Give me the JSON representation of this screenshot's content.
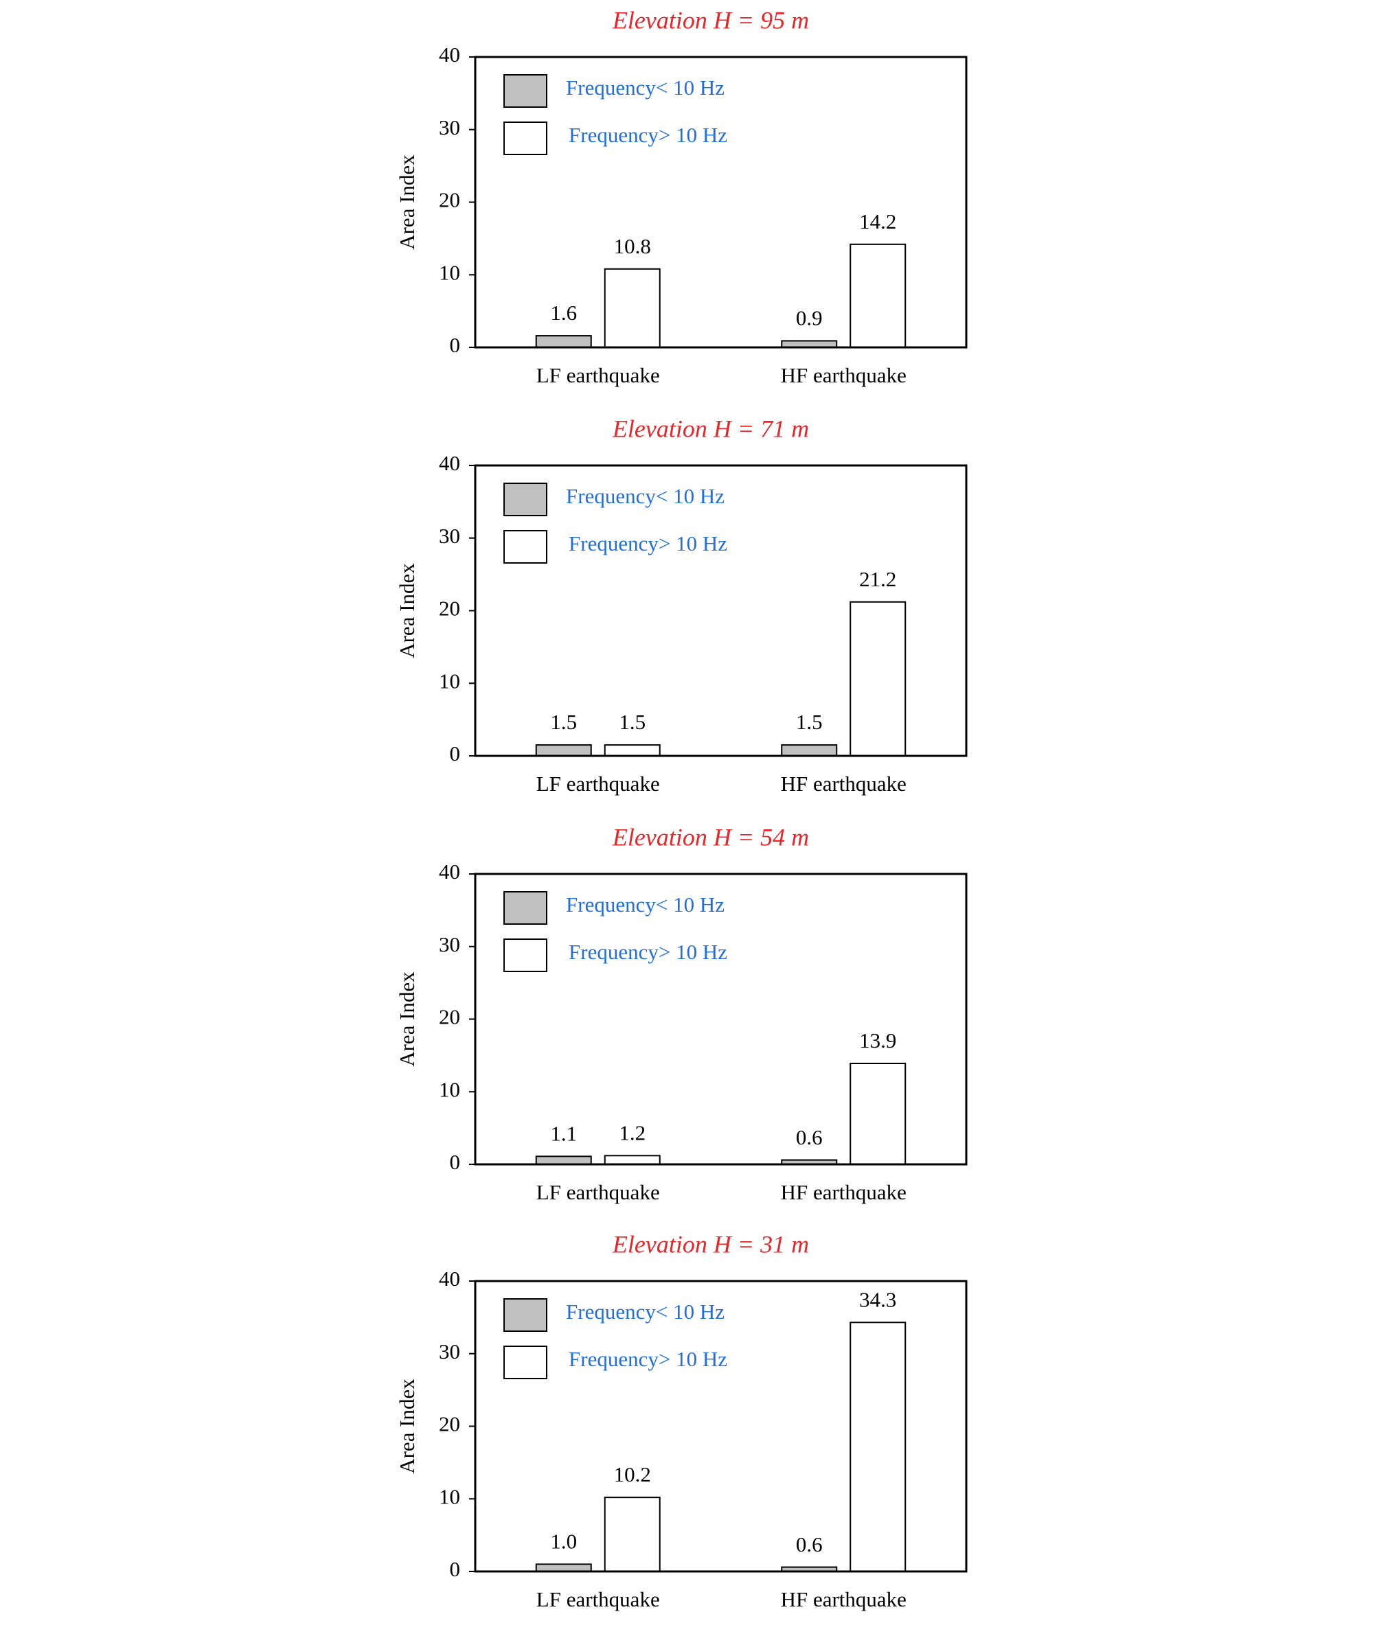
{
  "chart_data": [
    {
      "type": "bar",
      "title": "Elevation H = 95 m",
      "ylabel": "Area Index",
      "categories": [
        "LF earthquake",
        "HF earthquake"
      ],
      "series": [
        {
          "name": "Frequency< 10 Hz",
          "color": "#c0c0c0",
          "values": [
            1.6,
            0.9
          ]
        },
        {
          "name": "Frequency> 10 Hz",
          "color": "#ffffff",
          "values": [
            10.8,
            14.2
          ]
        }
      ],
      "ylim": [
        0,
        40
      ],
      "yticks": [
        0,
        10,
        20,
        30,
        40
      ]
    },
    {
      "type": "bar",
      "title": "Elevation H = 71 m",
      "ylabel": "Area Index",
      "categories": [
        "LF earthquake",
        "HF earthquake"
      ],
      "series": [
        {
          "name": "Frequency< 10 Hz",
          "color": "#c0c0c0",
          "values": [
            1.5,
            1.5
          ]
        },
        {
          "name": "Frequency> 10 Hz",
          "color": "#ffffff",
          "values": [
            1.5,
            21.2
          ]
        }
      ],
      "ylim": [
        0,
        40
      ],
      "yticks": [
        0,
        10,
        20,
        30,
        40
      ]
    },
    {
      "type": "bar",
      "title": "Elevation H = 54 m",
      "ylabel": "Area Index",
      "categories": [
        "LF earthquake",
        "HF earthquake"
      ],
      "series": [
        {
          "name": "Frequency< 10 Hz",
          "color": "#c0c0c0",
          "values": [
            1.1,
            0.6
          ]
        },
        {
          "name": "Frequency> 10 Hz",
          "color": "#ffffff",
          "values": [
            1.2,
            13.9
          ]
        }
      ],
      "ylim": [
        0,
        40
      ],
      "yticks": [
        0,
        10,
        20,
        30,
        40
      ]
    },
    {
      "type": "bar",
      "title": "Elevation H = 31 m",
      "ylabel": "Area Index",
      "categories": [
        "LF earthquake",
        "HF earthquake"
      ],
      "series": [
        {
          "name": "Frequency< 10 Hz",
          "color": "#c0c0c0",
          "values": [
            1.0,
            0.6
          ],
          "value_labels": [
            "1.0",
            "0.6"
          ]
        },
        {
          "name": "Frequency> 10 Hz",
          "color": "#ffffff",
          "values": [
            10.2,
            34.3
          ]
        }
      ],
      "ylim": [
        0,
        40
      ],
      "yticks": [
        0,
        10,
        20,
        30,
        40
      ]
    }
  ]
}
